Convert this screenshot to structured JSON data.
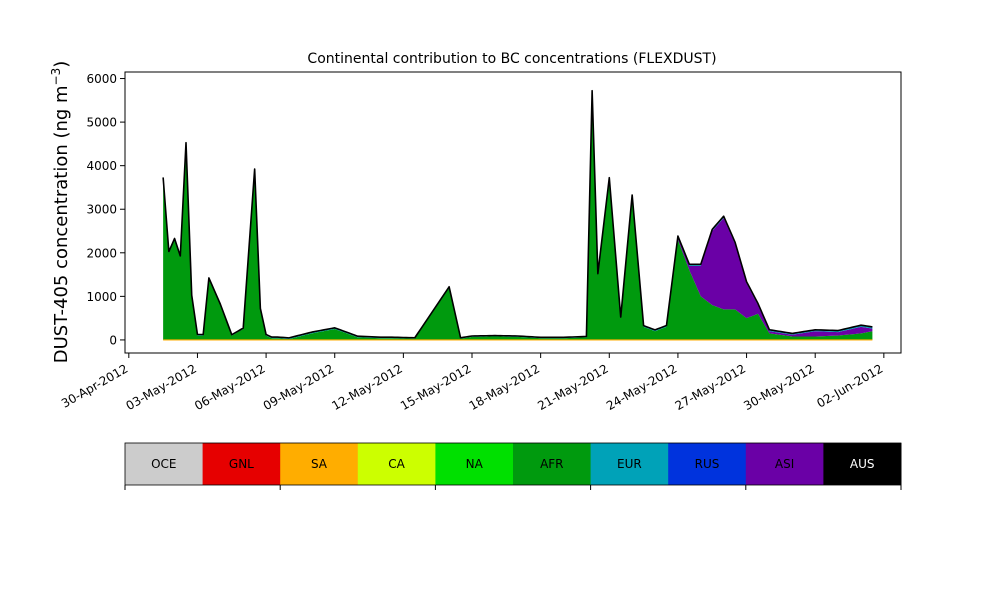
{
  "chart_data": {
    "type": "area",
    "title": "Continental contribution to BC concentrations (FLEXDUST)",
    "ylabel_main": "DUST-405 concentration (ng m",
    "ylabel_sup": "−3",
    "ylabel_close": ")",
    "xlabel": "",
    "ylim": [
      -300,
      6150
    ],
    "xlim": [
      "2012-04-29T20:00",
      "2012-06-02T18:00"
    ],
    "yticks": [
      0,
      1000,
      2000,
      3000,
      4000,
      5000,
      6000
    ],
    "xticks": [
      "30-Apr-2012",
      "03-May-2012",
      "06-May-2012",
      "09-May-2012",
      "12-May-2012",
      "15-May-2012",
      "18-May-2012",
      "21-May-2012",
      "24-May-2012",
      "27-May-2012",
      "30-May-2012",
      "02-Jun-2012"
    ],
    "grid": false,
    "stacked": true,
    "total_line_color": "#000000",
    "series": [
      {
        "name": "AFR",
        "color": "#009a0e",
        "x": [
          "2012-05-01T12:00",
          "2012-05-01T18:00",
          "2012-05-02T00:00",
          "2012-05-02T06:00",
          "2012-05-02T12:00",
          "2012-05-02T18:00",
          "2012-05-03T00:00",
          "2012-05-03T06:00",
          "2012-05-03T12:00",
          "2012-05-04T00:00",
          "2012-05-04T12:00",
          "2012-05-05T00:00",
          "2012-05-05T12:00",
          "2012-05-05T18:00",
          "2012-05-06T00:00",
          "2012-05-06T06:00",
          "2012-05-06T12:00",
          "2012-05-07T00:00",
          "2012-05-08T00:00",
          "2012-05-09T00:00",
          "2012-05-10T00:00",
          "2012-05-10T12:00",
          "2012-05-11T00:00",
          "2012-05-11T12:00",
          "2012-05-12T12:00",
          "2012-05-14T00:00",
          "2012-05-14T12:00",
          "2012-05-15T00:00",
          "2012-05-16T00:00",
          "2012-05-17T00:00",
          "2012-05-18T00:00",
          "2012-05-19T00:00",
          "2012-05-20T00:00",
          "2012-05-20T06:00",
          "2012-05-20T12:00",
          "2012-05-21T00:00",
          "2012-05-21T12:00",
          "2012-05-22T00:00",
          "2012-05-22T12:00",
          "2012-05-23T00:00",
          "2012-05-23T12:00",
          "2012-05-24T00:00",
          "2012-05-24T12:00",
          "2012-05-25T00:00",
          "2012-05-25T12:00",
          "2012-05-26T00:00",
          "2012-05-26T12:00",
          "2012-05-27T00:00",
          "2012-05-27T12:00",
          "2012-05-28T00:00",
          "2012-05-29T00:00",
          "2012-05-30T00:00",
          "2012-05-31T00:00",
          "2012-06-01T00:00",
          "2012-06-01T12:00"
        ],
        "values": [
          3700,
          2000,
          2300,
          1900,
          4500,
          1000,
          100,
          100,
          1400,
          800,
          100,
          250,
          3900,
          700,
          100,
          40,
          40,
          20,
          150,
          250,
          60,
          50,
          40,
          40,
          30,
          1200,
          30,
          70,
          80,
          70,
          40,
          40,
          60,
          5700,
          1500,
          3700,
          500,
          3300,
          300,
          200,
          300,
          2300,
          1600,
          1000,
          800,
          700,
          700,
          500,
          600,
          150,
          80,
          80,
          100,
          150,
          200
        ]
      },
      {
        "name": "ASI",
        "color": "#6a00a6",
        "x": [
          "2012-05-01T12:00",
          "2012-05-14T00:00",
          "2012-05-20T00:00",
          "2012-05-23T12:00",
          "2012-05-24T12:00",
          "2012-05-25T00:00",
          "2012-05-25T12:00",
          "2012-05-26T00:00",
          "2012-05-26T12:00",
          "2012-05-27T00:00",
          "2012-05-27T12:00",
          "2012-05-28T00:00",
          "2012-05-29T00:00",
          "2012-05-30T00:00",
          "2012-05-31T00:00",
          "2012-06-01T00:00",
          "2012-06-01T12:00"
        ],
        "values": [
          0,
          0,
          0,
          0,
          100,
          700,
          1700,
          2100,
          1500,
          800,
          200,
          50,
          40,
          120,
          80,
          150,
          60
        ]
      },
      {
        "name": "EUR",
        "color": "#00a2b8",
        "x": [
          "2012-05-01T12:00",
          "2012-05-04T12:00",
          "2012-05-08T00:00",
          "2012-05-12T12:00",
          "2012-05-16T00:00",
          "2012-05-20T00:00",
          "2012-05-23T00:00",
          "2012-05-26T00:00",
          "2012-05-29T00:00",
          "2012-06-01T12:00"
        ],
        "values": [
          30,
          20,
          30,
          20,
          20,
          20,
          30,
          40,
          30,
          40
        ]
      }
    ],
    "colorbar": [
      {
        "label": "OCE",
        "color": "#cccccc",
        "text_color": "#000000"
      },
      {
        "label": "GNL",
        "color": "#e60000",
        "text_color": "#000000"
      },
      {
        "label": "SA",
        "color": "#ffad00",
        "text_color": "#000000"
      },
      {
        "label": "CA",
        "color": "#ccff00",
        "text_color": "#000000"
      },
      {
        "label": "NA",
        "color": "#00e000",
        "text_color": "#000000"
      },
      {
        "label": "AFR",
        "color": "#009a0e",
        "text_color": "#000000"
      },
      {
        "label": "EUR",
        "color": "#00a2b8",
        "text_color": "#000000"
      },
      {
        "label": "RUS",
        "color": "#0033dd",
        "text_color": "#000000"
      },
      {
        "label": "ASI",
        "color": "#6a00a6",
        "text_color": "#000000"
      },
      {
        "label": "AUS",
        "color": "#000000",
        "text_color": "#ffffff"
      }
    ]
  }
}
